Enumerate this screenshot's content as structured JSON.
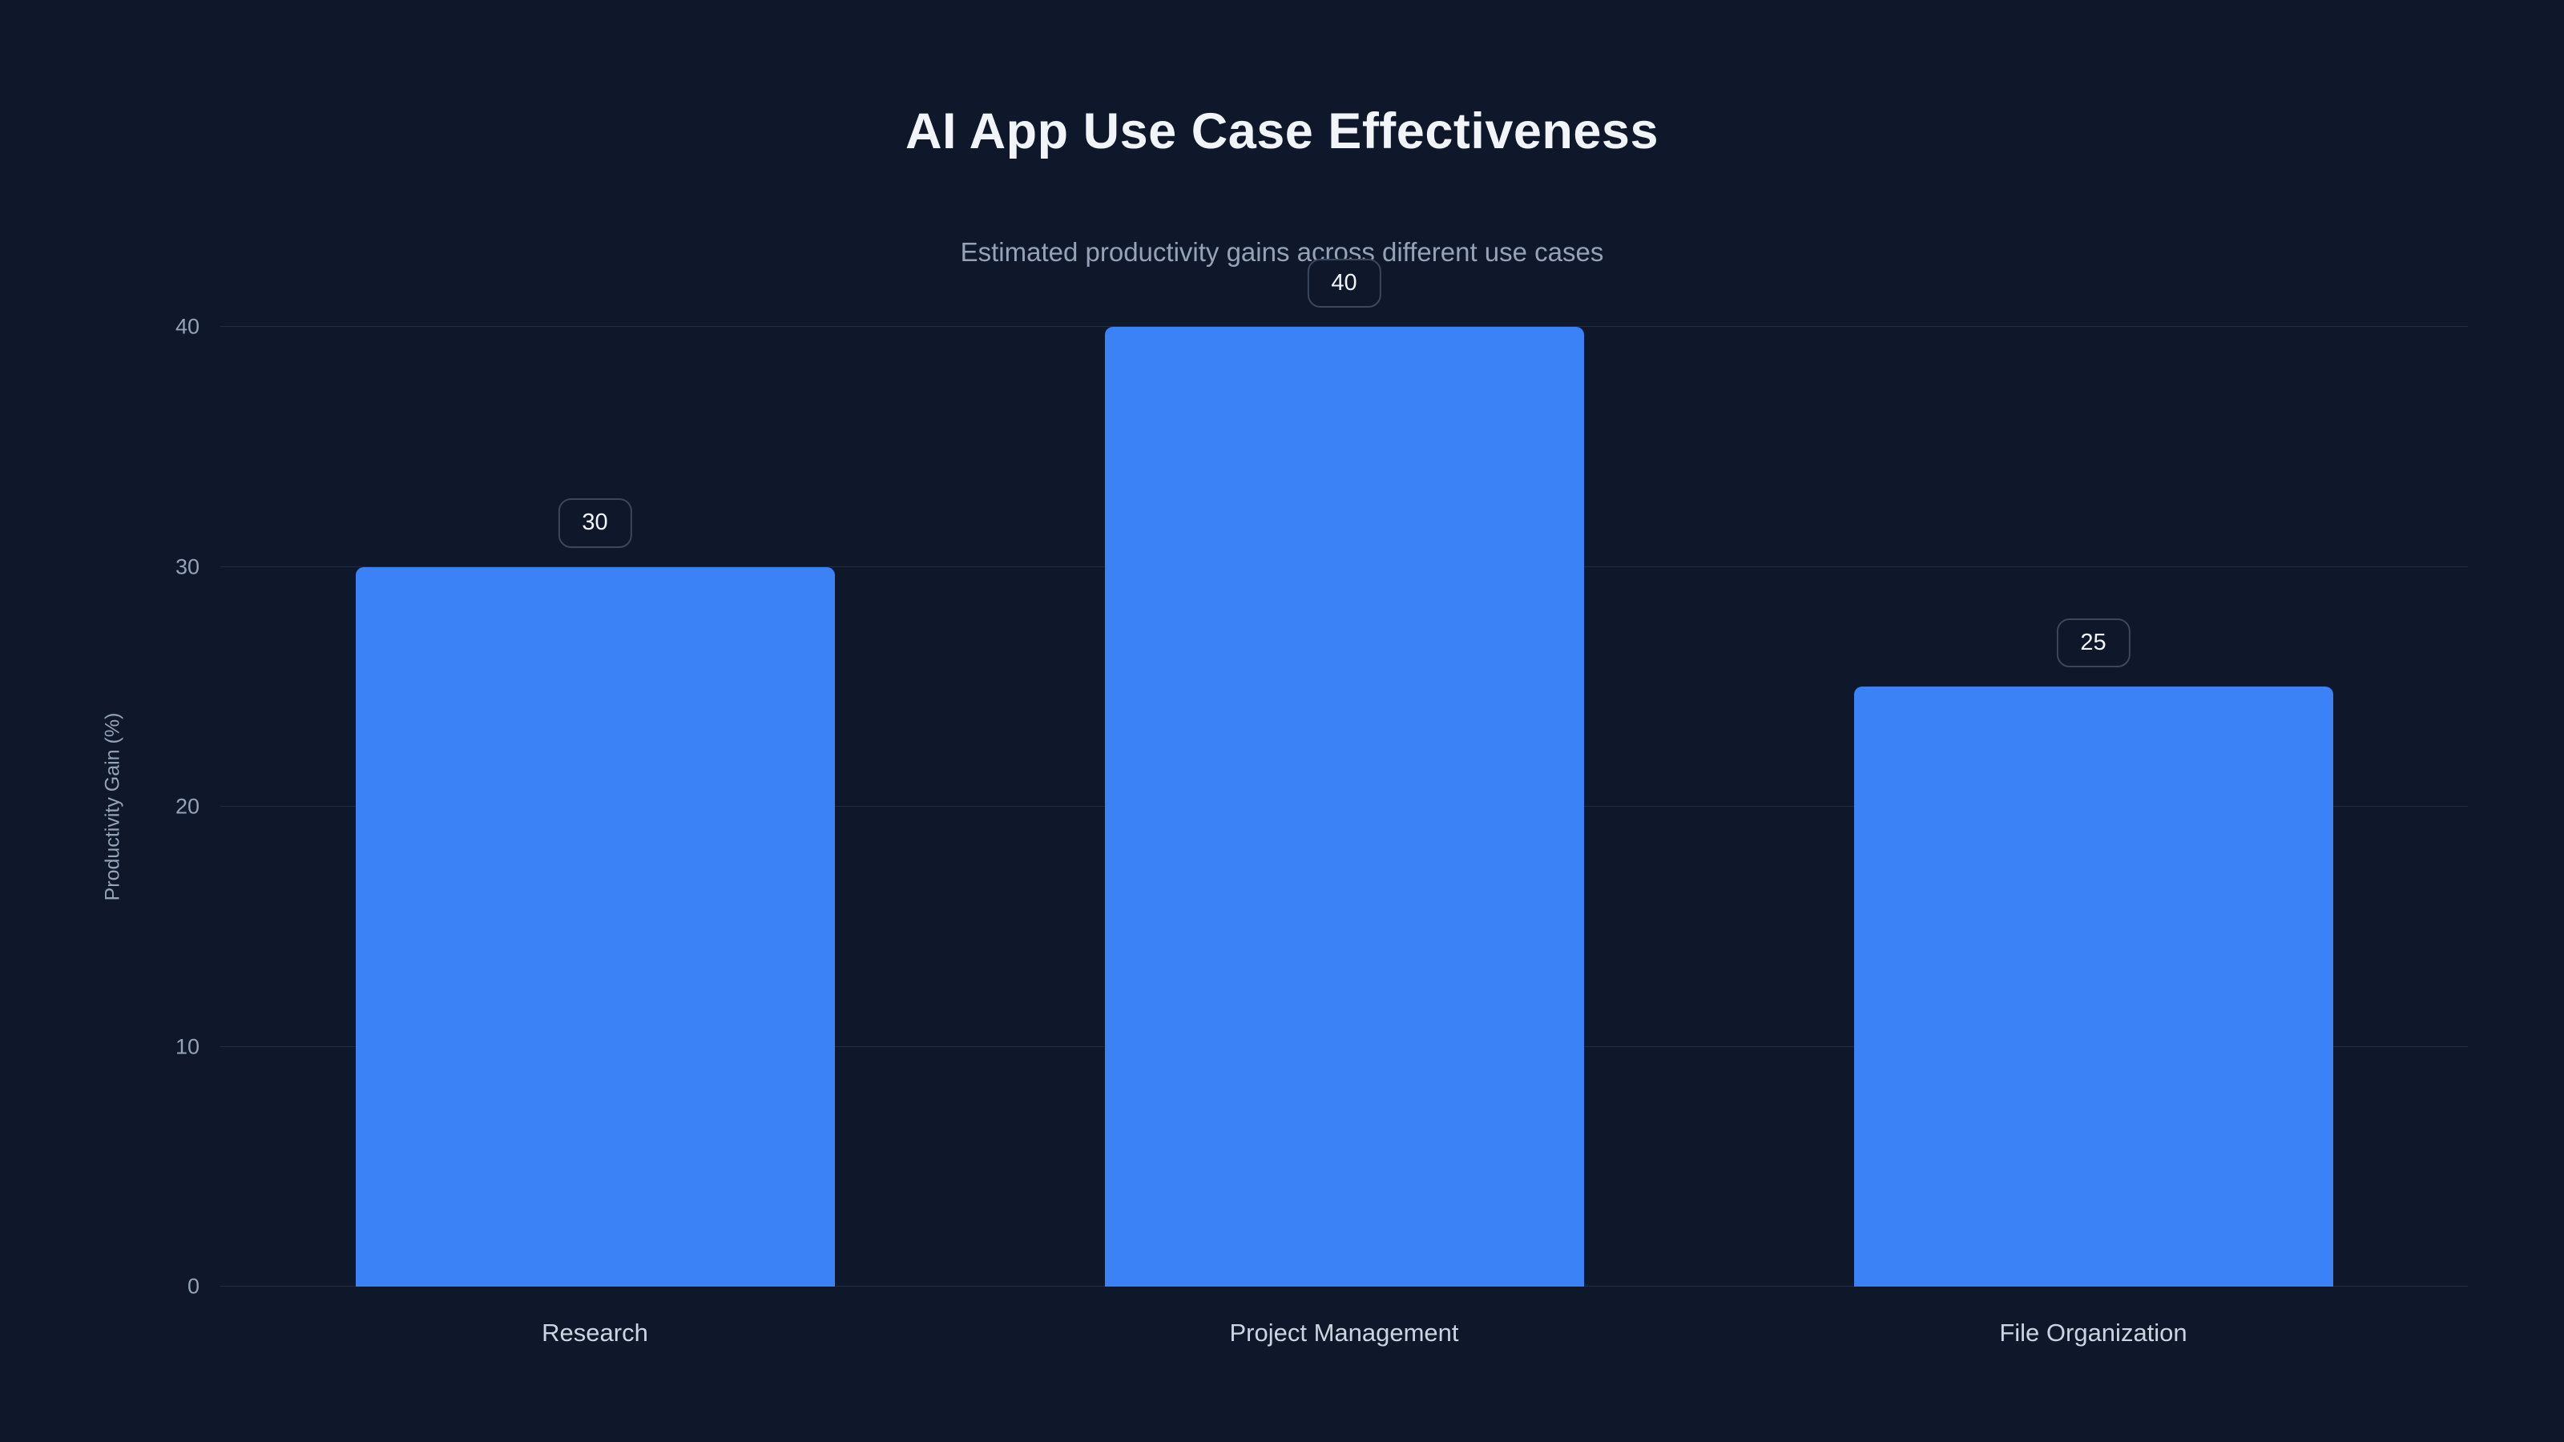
{
  "page": {
    "background_color": "#0f172a"
  },
  "chart_data": {
    "type": "bar",
    "title": "AI App Use Case Effectiveness",
    "subtitle": "Estimated productivity gains across different use cases",
    "categories": [
      "Research",
      "Project Management",
      "File Organization"
    ],
    "values": [
      30,
      40,
      25
    ],
    "value_labels": [
      "30",
      "40",
      "25"
    ],
    "xlabel": "",
    "ylabel": "Productivity Gain (%)",
    "ylim": [
      0,
      40
    ],
    "yticks": [
      0,
      10,
      20,
      30,
      40
    ],
    "grid": true,
    "legend": false,
    "bar_color": "#3b82f6",
    "badge_border_color": "#3b475c",
    "title_color": "#f1f5f9",
    "muted_text_color": "#94a3b8",
    "axis_label_color": "#cbd5e1"
  }
}
